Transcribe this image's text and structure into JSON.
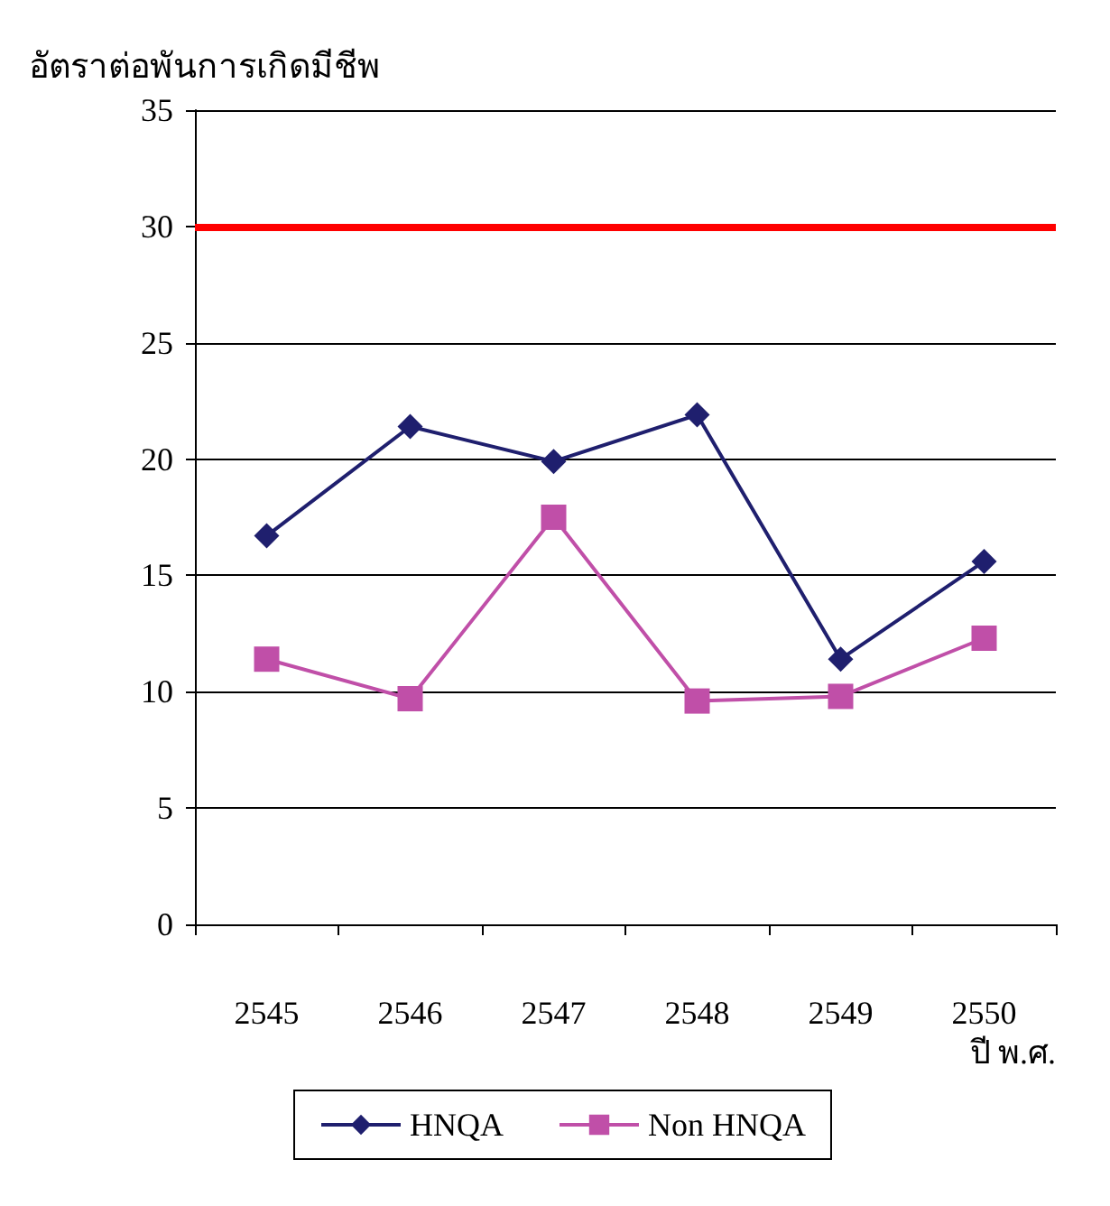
{
  "chart_data": {
    "type": "line",
    "ylabel": "อัตราต่อพันการเกิดมีชีพ",
    "xlabel": "ปี พ.ศ.",
    "categories": [
      "2545",
      "2546",
      "2547",
      "2548",
      "2549",
      "2550"
    ],
    "series": [
      {
        "name": "HNQA",
        "color": "#1f1f6e",
        "marker": "diamond",
        "values": [
          16.7,
          21.4,
          19.9,
          21.9,
          11.4,
          15.6
        ]
      },
      {
        "name": "Non HNQA",
        "color": "#c04fa8",
        "marker": "square",
        "values": [
          11.4,
          9.7,
          17.5,
          9.6,
          9.8,
          12.3
        ]
      }
    ],
    "ylim": [
      0,
      35
    ],
    "yticks": [
      0,
      5,
      10,
      15,
      20,
      25,
      30,
      35
    ],
    "grid": "y",
    "legend": "bottom",
    "line_style": "solid",
    "ref_lines": [
      {
        "axis": "y",
        "value": 30,
        "color": "#ff0000"
      }
    ]
  }
}
